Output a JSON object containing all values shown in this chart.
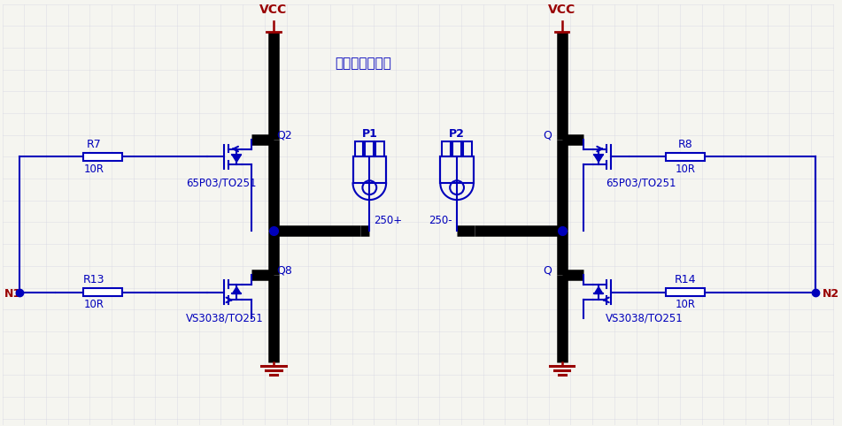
{
  "bg_color": "#f5f5f0",
  "blue": "#0000bb",
  "black": "#000000",
  "red": "#990000",
  "lw_thin": 1.5,
  "lw_thick": 9.0,
  "title": "走线要求短、粗",
  "vcc": "VCC",
  "n1": "N1",
  "n2": "N2",
  "p1": "P1",
  "p2": "P2",
  "q2": "Q2",
  "q8": "Q8",
  "qtr": "Q",
  "qbr": "Q",
  "r7": "R7",
  "r13": "R13",
  "r8": "R8",
  "r14": "R14",
  "rval": "10R",
  "type_pmos_l": "65P03/TO251",
  "type_nmos_l": "VS3038/TO251",
  "type_pmos_r": "65P03/TO251",
  "type_nmos_r": "VS3038/TO251",
  "cplus": "250+",
  "cminus": "250-"
}
